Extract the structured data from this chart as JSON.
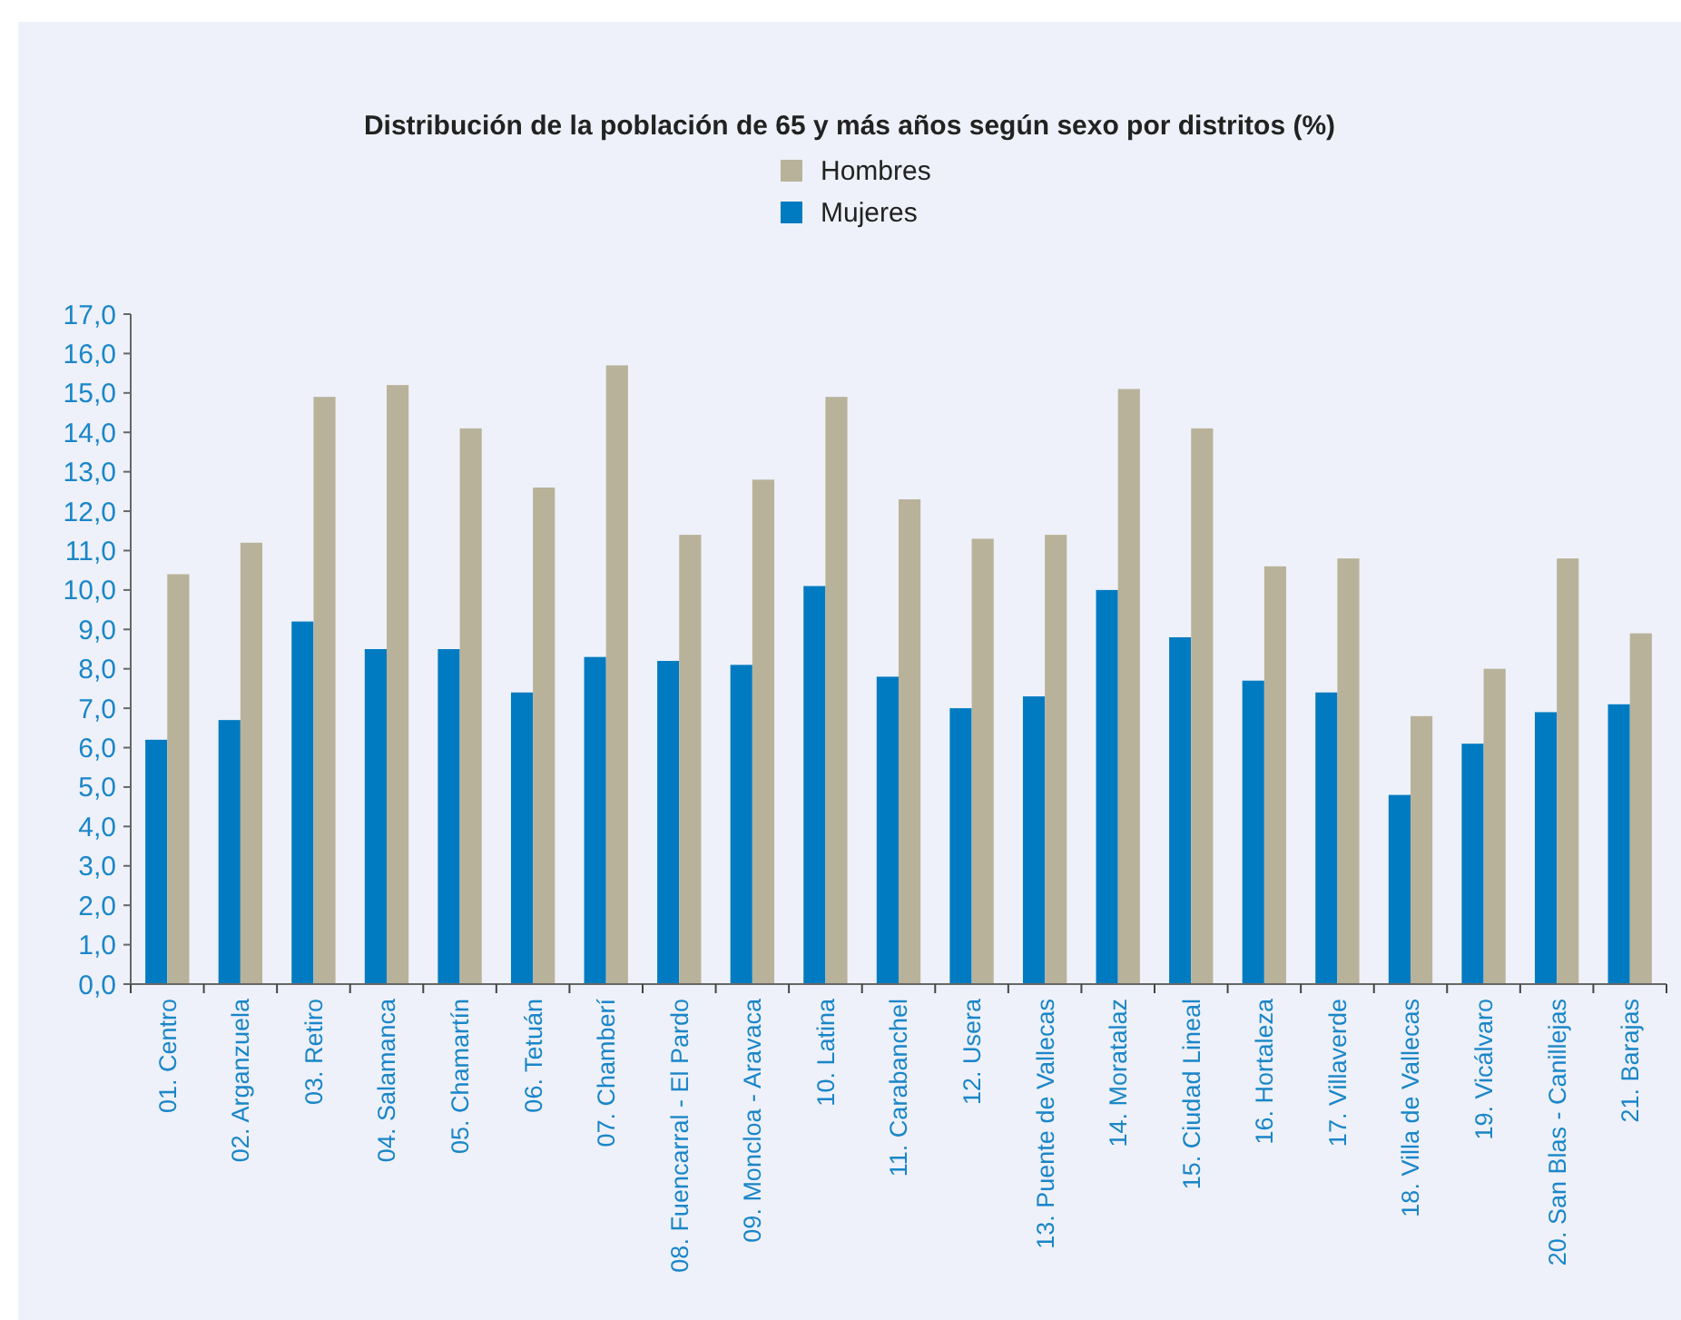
{
  "chart_data": {
    "type": "bar",
    "title": "Distribución de la población de 65 y más años según sexo por distritos (%)",
    "categories": [
      "01. Centro",
      "02. Arganzuela",
      "03. Retiro",
      "04. Salamanca",
      "05. Chamartín",
      "06. Tetuán",
      "07. Chamberí",
      "08. Fuencarral - El Pardo",
      "09. Moncloa - Aravaca",
      "10. Latina",
      "11. Carabanchel",
      "12. Usera",
      "13. Puente de Vallecas",
      "14. Moratalaz",
      "15. Ciudad Lineal",
      "16. Hortaleza",
      "17. Villaverde",
      "18. Villa de Vallecas",
      "19. Vicálvaro",
      "20. San Blas - Canillejas",
      "21. Barajas"
    ],
    "series": [
      {
        "name": "Mujeres",
        "color": "#007bc1",
        "values": [
          6.2,
          6.7,
          9.2,
          8.5,
          8.5,
          7.4,
          8.3,
          8.2,
          8.1,
          10.1,
          7.8,
          7.0,
          7.3,
          10.0,
          8.8,
          7.7,
          7.4,
          4.8,
          6.1,
          6.9,
          7.1
        ]
      },
      {
        "name": "Hombres",
        "color": "#b9b29a",
        "values": [
          10.4,
          11.2,
          14.9,
          15.2,
          14.1,
          12.6,
          15.7,
          11.4,
          12.8,
          14.9,
          12.3,
          11.3,
          11.4,
          15.1,
          14.1,
          10.6,
          10.8,
          6.8,
          8.0,
          10.8,
          8.9
        ]
      }
    ],
    "ylim": [
      0,
      17
    ],
    "yticks": [
      {
        "value": 0,
        "label": "0,0"
      },
      {
        "value": 1,
        "label": "1,0"
      },
      {
        "value": 2,
        "label": "2,0"
      },
      {
        "value": 3,
        "label": "3,0"
      },
      {
        "value": 4,
        "label": "4,0"
      },
      {
        "value": 5,
        "label": "5,0"
      },
      {
        "value": 6,
        "label": "6,0"
      },
      {
        "value": 7,
        "label": "7,0"
      },
      {
        "value": 8,
        "label": "8,0"
      },
      {
        "value": 9,
        "label": "9,0"
      },
      {
        "value": 10,
        "label": "10,0"
      },
      {
        "value": 11,
        "label": "11,0"
      },
      {
        "value": 12,
        "label": "12,0"
      },
      {
        "value": 13,
        "label": "13,0"
      },
      {
        "value": 14,
        "label": "14,0"
      },
      {
        "value": 15,
        "label": "15,0"
      },
      {
        "value": 16,
        "label": "16,0"
      },
      {
        "value": 17,
        "label": "17,0"
      }
    ],
    "grid": false,
    "legend": "top"
  }
}
